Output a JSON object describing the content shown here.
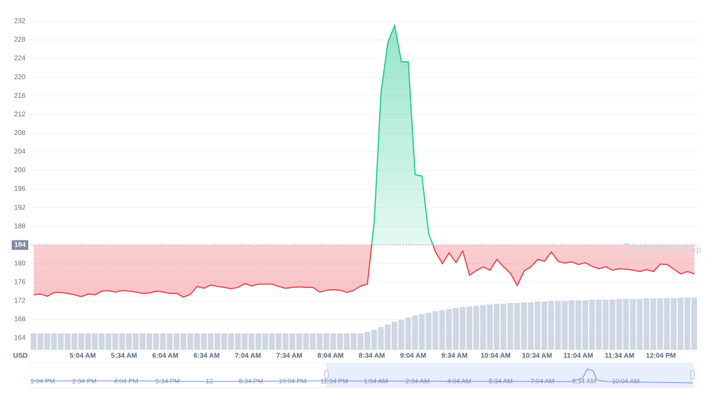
{
  "chart_data": {
    "type": "line",
    "currency": "USD",
    "watermark": "CoinMarketCap",
    "baseline": 184,
    "ylim": [
      161.2,
      235.1
    ],
    "yticks": [
      164,
      168,
      172,
      176,
      180,
      184,
      188,
      192,
      196,
      200,
      204,
      208,
      212,
      216,
      220,
      224,
      228,
      232
    ],
    "grid": true,
    "x_labels": [
      "5:04 AM",
      "5:34 AM",
      "6:04 AM",
      "6:34 AM",
      "7:04 AM",
      "7:34 AM",
      "8:04 AM",
      "8:34 AM",
      "9:04 AM",
      "9:34 AM",
      "10:04 AM",
      "10:34 AM",
      "11:04 AM",
      "11:34 AM",
      "12:04 PM"
    ],
    "up_color": "#16c784",
    "down_color": "#ea3943",
    "series": [
      {
        "values": [
          173.3,
          173.5,
          173,
          173.8,
          173.8,
          173.6,
          173.3,
          172.9,
          173.5,
          173.3,
          174.1,
          174.2,
          173.9,
          174.2,
          174.1,
          173.9,
          173.6,
          173.7,
          174.1,
          173.9,
          173.6,
          173.6,
          172.8,
          173.4,
          175.1,
          174.7,
          175.4,
          175.1,
          174.9,
          174.6,
          174.9,
          175.7,
          175.2,
          175.6,
          175.6,
          175.6,
          175.1,
          174.7,
          174.9,
          175,
          174.9,
          174.9,
          173.9,
          174.3,
          174.4,
          174.3,
          173.8,
          174.3,
          175.2,
          175.6,
          189,
          216.8,
          227.5,
          231.1,
          223.3,
          223.3,
          199.1,
          198.8,
          186.4,
          182.5,
          180,
          182.3,
          180.2,
          182.7,
          177.5,
          178.5,
          179.3,
          178.6,
          180.9,
          179.3,
          177.9,
          175.3,
          178.4,
          179.3,
          180.9,
          180.5,
          182.5,
          180.5,
          180.1,
          180.4,
          179.8,
          180.2,
          179.4,
          178.9,
          179.3,
          178.6,
          178.9,
          178.8,
          178.6,
          178.3,
          178.7,
          178.3,
          179.9,
          179.8,
          178.8,
          177.8,
          178.3,
          177.8
        ]
      },
      {
        "color": "#cfd6e4",
        "vlim": [
          0,
          100
        ],
        "values": [
          24,
          24,
          24,
          24,
          24,
          24,
          24,
          24,
          24,
          24,
          24,
          24,
          24,
          24,
          24,
          24,
          24,
          24,
          24,
          24,
          24,
          24,
          24,
          24,
          24,
          24,
          24,
          24,
          24,
          24,
          24,
          24,
          24,
          24,
          24,
          24,
          24,
          24,
          24,
          24,
          24,
          24,
          24,
          24,
          24,
          24,
          24,
          24,
          24,
          26,
          29,
          33,
          37,
          41,
          44,
          47,
          50,
          52,
          54,
          56,
          58,
          59,
          61,
          62,
          63,
          64,
          65,
          66,
          67,
          67,
          68,
          68,
          69,
          69,
          70,
          70,
          71,
          71,
          71,
          72,
          72,
          72,
          73,
          73,
          73,
          73,
          74,
          74,
          74,
          74,
          75,
          75,
          75,
          75,
          75,
          76,
          76,
          76
        ]
      }
    ],
    "navigator_labels": [
      "1:04 PM",
      "2:34 PM",
      "4:04 PM",
      "5:34 PM",
      "12",
      "8:34 PM",
      "10:04 PM",
      "11:34 PM",
      "1:04 AM",
      "2:34 AM",
      "4:04 AM",
      "5:34 AM",
      "7:04 AM",
      "8:34 AM",
      "10:04 AM"
    ]
  }
}
